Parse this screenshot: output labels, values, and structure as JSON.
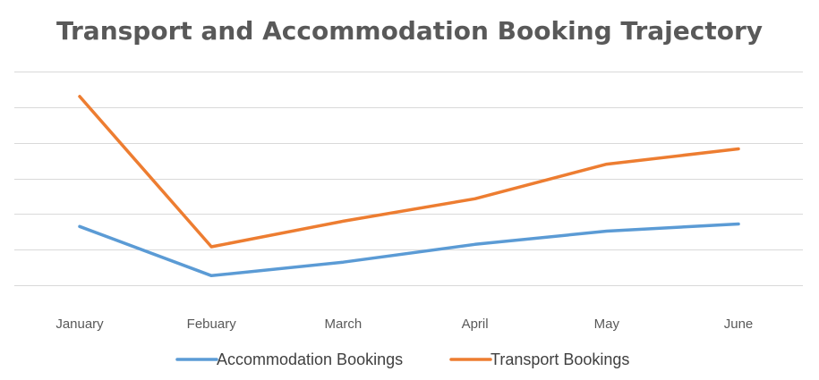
{
  "chart_data": {
    "type": "line",
    "title": "Transport and Accommodation Booking Trajectory",
    "categories": [
      "January",
      "Febuary",
      "March",
      "April",
      "May",
      "June"
    ],
    "series": [
      {
        "name": "Accommodation Bookings",
        "color": "#5b9bd5",
        "values": [
          1.65,
          0.27,
          0.65,
          1.15,
          1.52,
          1.72
        ]
      },
      {
        "name": "Transport Bookings",
        "color": "#ed7d31",
        "values": [
          5.3,
          1.08,
          1.8,
          2.43,
          3.4,
          3.83
        ]
      }
    ],
    "ylim": [
      -0.5,
      6
    ],
    "grid": true,
    "y_tick_labels_visible": false,
    "legend_position": "bottom"
  }
}
